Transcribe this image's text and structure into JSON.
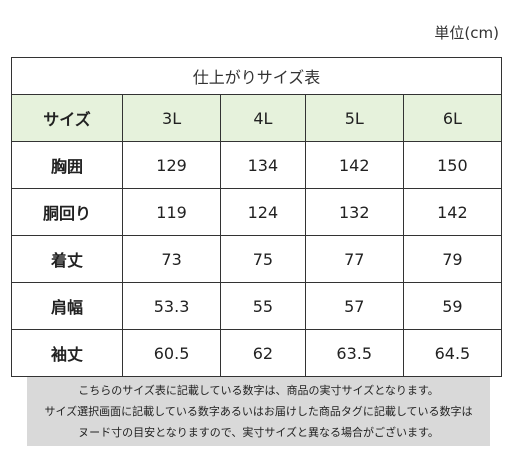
{
  "unit_label": "単位(cm)",
  "table": {
    "title": "仕上がりサイズ表",
    "header": {
      "label": "サイズ",
      "sizes": [
        "3L",
        "4L",
        "5L",
        "6L"
      ]
    },
    "rows": [
      {
        "label": "胸囲",
        "values": [
          "129",
          "134",
          "142",
          "150"
        ]
      },
      {
        "label": "胴回り",
        "values": [
          "119",
          "124",
          "132",
          "142"
        ]
      },
      {
        "label": "着丈",
        "values": [
          "73",
          "75",
          "77",
          "79"
        ]
      },
      {
        "label": "肩幅",
        "values": [
          "53.3",
          "55",
          "57",
          "59"
        ]
      },
      {
        "label": "袖丈",
        "values": [
          "60.5",
          "62",
          "63.5",
          "64.5"
        ]
      }
    ]
  },
  "note": {
    "lines": [
      "こちらのサイズ表に記載している数字は、商品の実寸サイズとなります。",
      "サイズ選択画面に記載している数字あるいはお届けした商品タグに記載している数字は",
      "ヌード寸の目安となりますので、実寸サイズと異なる場合がございます。"
    ]
  },
  "colors": {
    "header_bg": "#e6f2dc",
    "note_bg": "#d9d9d9",
    "border": "#333333"
  }
}
